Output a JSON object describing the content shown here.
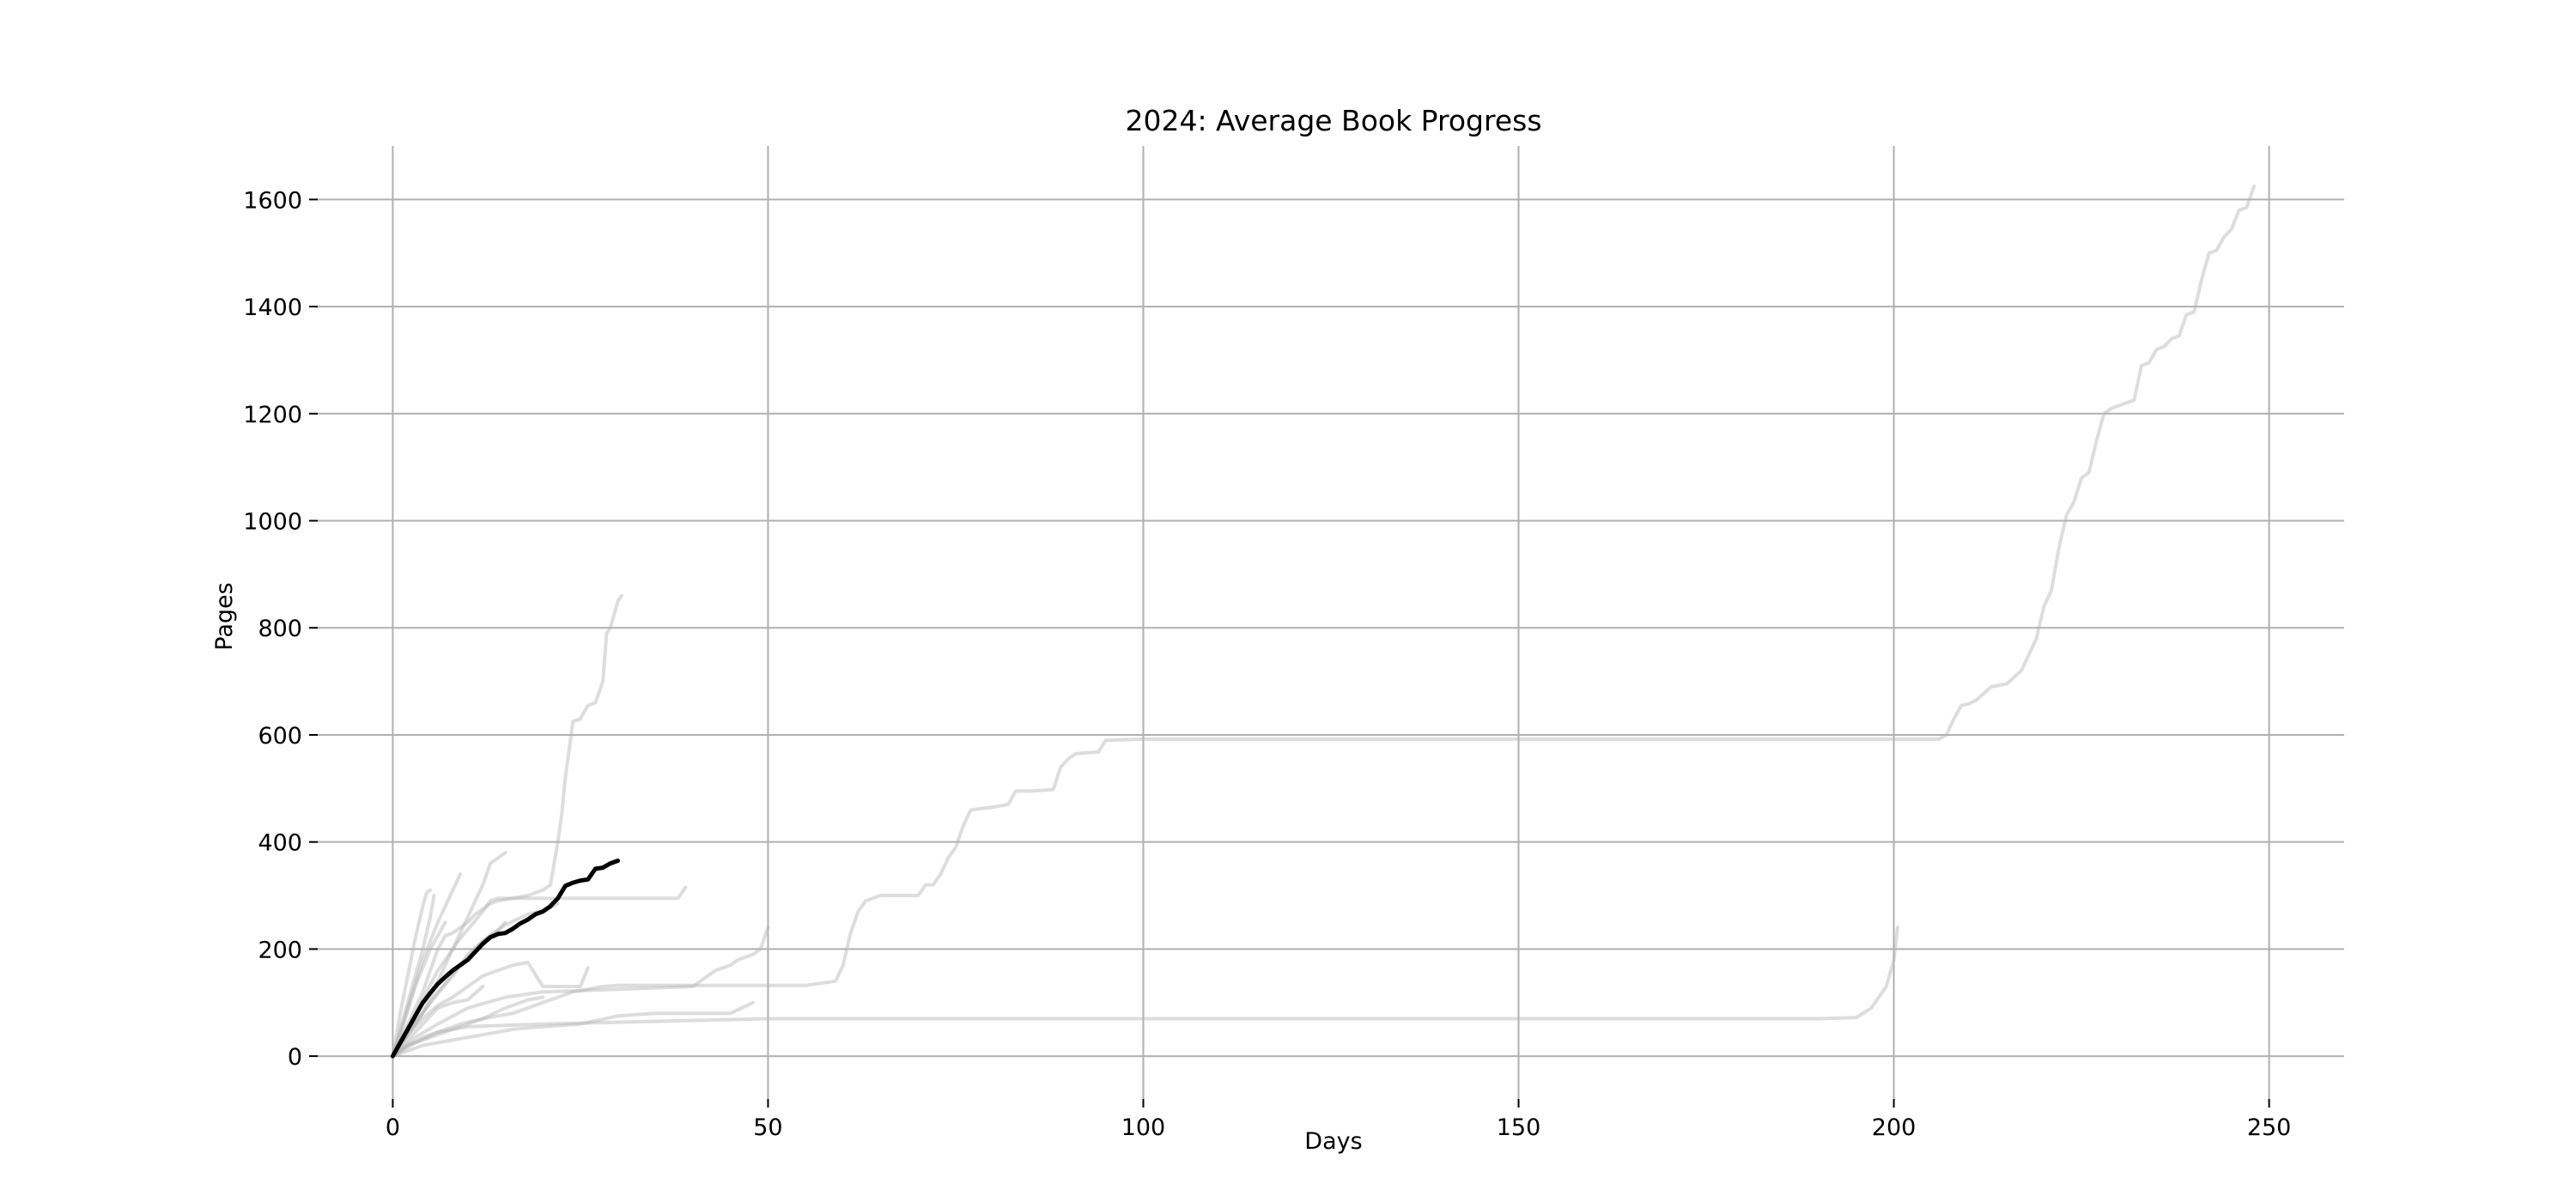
{
  "chart_data": {
    "type": "line",
    "title": "2024: Average Book Progress",
    "xlabel": "Days",
    "ylabel": "Pages",
    "xlim": [
      -10,
      260
    ],
    "ylim": [
      -80,
      1700
    ],
    "xticks": [
      0,
      50,
      100,
      150,
      200,
      250
    ],
    "yticks": [
      0,
      200,
      400,
      600,
      800,
      1000,
      1200,
      1400,
      1600
    ],
    "grid": true,
    "legend": "none",
    "colors": {
      "average": "#000000",
      "book": "#b4b4b4",
      "grid": "#b0b0b0"
    },
    "average": {
      "x": [
        0,
        1,
        2,
        3,
        4,
        5,
        6,
        7,
        8,
        9,
        10,
        11,
        12,
        13,
        14,
        15,
        16,
        17,
        18,
        19,
        20,
        21,
        22,
        23,
        24,
        25,
        26,
        27,
        28,
        29,
        30
      ],
      "y": [
        0,
        25,
        50,
        75,
        100,
        118,
        135,
        148,
        160,
        170,
        180,
        195,
        210,
        222,
        228,
        230,
        238,
        248,
        255,
        265,
        270,
        280,
        295,
        318,
        324,
        328,
        330,
        350,
        352,
        360,
        365
      ]
    },
    "series": [
      {
        "x": [
          0,
          2,
          4,
          6,
          7,
          8,
          9,
          10,
          11,
          12,
          12.5,
          13,
          14,
          16,
          18,
          20,
          21,
          22,
          22.5,
          23,
          24,
          25,
          26,
          27,
          28,
          28.5,
          29,
          30,
          30.5
        ],
        "y": [
          0,
          60,
          120,
          200,
          225,
          230,
          240,
          250,
          265,
          275,
          280,
          285,
          290,
          295,
          300,
          310,
          320,
          400,
          450,
          520,
          625,
          630,
          655,
          660,
          700,
          790,
          800,
          850,
          860
        ]
      },
      {
        "x": [
          0,
          1,
          2,
          3,
          4,
          4.5,
          5
        ],
        "y": [
          0,
          80,
          150,
          220,
          280,
          305,
          310
        ]
      },
      {
        "x": [
          0,
          1,
          2,
          3,
          4,
          5,
          5.5
        ],
        "y": [
          0,
          50,
          100,
          150,
          200,
          260,
          300
        ]
      },
      {
        "x": [
          0,
          2,
          4,
          6,
          8,
          9
        ],
        "y": [
          0,
          90,
          180,
          250,
          310,
          340
        ]
      },
      {
        "x": [
          0,
          2,
          4,
          6,
          8,
          10,
          12,
          13,
          14,
          15
        ],
        "y": [
          0,
          40,
          80,
          140,
          200,
          260,
          320,
          360,
          370,
          380
        ]
      },
      {
        "x": [
          0,
          3,
          6,
          9,
          12,
          13,
          14,
          15,
          20,
          25,
          30,
          35,
          38,
          39
        ],
        "y": [
          0,
          80,
          160,
          220,
          270,
          290,
          295,
          295,
          295,
          295,
          295,
          295,
          295,
          315
        ]
      },
      {
        "x": [
          0,
          2,
          4,
          6,
          8,
          10,
          12,
          14,
          16,
          18,
          20,
          22,
          24,
          25,
          26
        ],
        "y": [
          0,
          40,
          70,
          95,
          110,
          130,
          150,
          160,
          170,
          175,
          130,
          130,
          130,
          130,
          165
        ]
      },
      {
        "x": [
          0,
          3,
          6,
          10,
          15,
          20,
          30,
          40,
          43,
          45,
          46,
          48,
          49,
          50
        ],
        "y": [
          0,
          35,
          60,
          90,
          110,
          120,
          125,
          130,
          160,
          170,
          180,
          190,
          200,
          240
        ]
      },
      {
        "x": [
          0,
          2,
          4,
          6,
          8,
          10,
          12,
          14,
          16,
          18,
          20,
          22,
          24,
          26,
          28,
          30,
          35,
          40,
          45,
          50,
          55,
          59,
          60,
          61,
          62,
          63,
          65,
          67,
          70,
          71,
          72,
          73,
          74,
          75,
          76,
          77,
          80,
          82,
          83,
          85,
          88,
          89,
          90,
          91,
          94,
          95,
          100,
          120,
          140,
          160,
          180,
          200,
          206,
          207,
          208,
          209,
          210,
          211,
          213,
          215,
          217,
          219,
          220,
          221,
          222,
          223,
          224,
          225,
          226,
          227,
          228,
          229,
          230,
          231,
          232,
          233,
          234,
          235,
          236,
          237,
          238,
          239,
          240,
          241,
          242,
          243,
          244,
          245,
          246,
          247,
          248
        ],
        "y": [
          0,
          20,
          30,
          40,
          50,
          60,
          70,
          75,
          80,
          90,
          100,
          110,
          120,
          125,
          130,
          132,
          132,
          132,
          132,
          132,
          132,
          140,
          170,
          230,
          270,
          290,
          300,
          300,
          300,
          320,
          320,
          340,
          370,
          390,
          430,
          460,
          465,
          470,
          495,
          495,
          498,
          540,
          555,
          565,
          568,
          590,
          592,
          592,
          592,
          592,
          592,
          592,
          592,
          600,
          630,
          655,
          658,
          665,
          690,
          695,
          720,
          780,
          840,
          870,
          950,
          1010,
          1035,
          1080,
          1090,
          1150,
          1200,
          1210,
          1215,
          1220,
          1225,
          1290,
          1295,
          1320,
          1325,
          1340,
          1345,
          1385,
          1390,
          1450,
          1500,
          1505,
          1530,
          1545,
          1580,
          1585,
          1625
        ]
      },
      {
        "x": [
          0,
          2,
          4,
          6,
          10,
          20,
          50,
          100,
          150,
          190,
          195,
          197,
          199,
          200,
          200.5
        ],
        "y": [
          0,
          20,
          35,
          45,
          55,
          60,
          70,
          70,
          70,
          70,
          72,
          90,
          130,
          180,
          240
        ]
      },
      {
        "x": [
          0,
          3,
          6,
          9,
          12,
          15,
          18,
          20,
          21,
          22
        ],
        "y": [
          0,
          60,
          120,
          170,
          215,
          245,
          265,
          272,
          278,
          285
        ]
      },
      {
        "x": [
          0,
          2,
          4,
          6,
          8,
          10,
          12
        ],
        "y": [
          0,
          30,
          60,
          90,
          100,
          105,
          130
        ]
      },
      {
        "x": [
          0,
          3,
          6,
          9,
          12,
          15,
          18,
          20
        ],
        "y": [
          0,
          25,
          45,
          60,
          70,
          90,
          105,
          110
        ]
      },
      {
        "x": [
          0,
          2,
          5,
          8,
          10,
          12,
          14,
          15
        ],
        "y": [
          0,
          45,
          100,
          150,
          190,
          215,
          235,
          250
        ]
      },
      {
        "x": [
          0,
          4,
          8,
          12,
          16,
          20,
          25,
          30,
          35,
          40,
          45,
          48
        ],
        "y": [
          0,
          20,
          30,
          40,
          50,
          55,
          60,
          75,
          80,
          80,
          80,
          100
        ]
      },
      {
        "x": [
          0,
          1,
          2,
          3,
          4,
          5,
          6,
          7
        ],
        "y": [
          0,
          40,
          85,
          130,
          165,
          200,
          225,
          250
        ]
      }
    ]
  }
}
